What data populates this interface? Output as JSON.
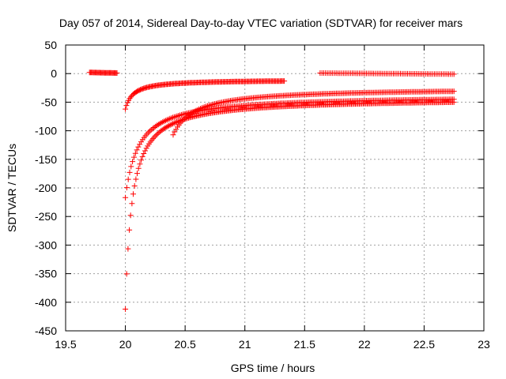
{
  "chart_data": {
    "type": "scatter",
    "title": "Day 057 of 2014, Sidereal Day-to-day VTEC variation (SDTVAR) for receiver mars",
    "xlabel": "GPS time / hours",
    "ylabel": "SDTVAR / TECUs",
    "xlim": [
      19.5,
      23
    ],
    "ylim": [
      -450,
      50
    ],
    "xticks": [
      "19.5",
      "20",
      "20.5",
      "21",
      "21.5",
      "22",
      "22.5",
      "23"
    ],
    "yticks": [
      "50",
      "0",
      "-50",
      "-100",
      "-150",
      "-200",
      "-250",
      "-300",
      "-350",
      "-400",
      "-450"
    ],
    "grid": true,
    "marker": "+",
    "colors": {
      "series": "#ff0000",
      "grid": "#a0a0a0",
      "axis": "#000000"
    },
    "series": [
      {
        "name": "flat-early",
        "kind": "flat",
        "x0": 19.7,
        "x1": 19.93,
        "values": [
          2,
          1
        ],
        "step": 0.008
      },
      {
        "name": "flat-late",
        "kind": "flat",
        "x0": 21.63,
        "x1": 22.75,
        "values": [
          1,
          -1
        ],
        "step": 0.015
      },
      {
        "name": "arc-upper",
        "kind": "arc",
        "x0": 20.0,
        "x1": 21.33,
        "y0": -62,
        "y1": -13,
        "k": 0.065,
        "step": 0.009
      },
      {
        "name": "arc-upper-mid",
        "kind": "arc",
        "x0": 20.4,
        "x1": 22.75,
        "y0": -107,
        "y1": -31,
        "k": 0.18,
        "step": 0.012
      },
      {
        "name": "arc-lower-mid",
        "kind": "arc",
        "x0": 20.0,
        "x1": 22.75,
        "y0": -217,
        "y1": -45,
        "k": 0.11,
        "step": 0.012
      },
      {
        "name": "arc-lowest",
        "kind": "arc",
        "x0": 20.0,
        "x1": 22.75,
        "y0": -412,
        "y1": -50,
        "k": 0.055,
        "step": 0.011
      }
    ]
  }
}
